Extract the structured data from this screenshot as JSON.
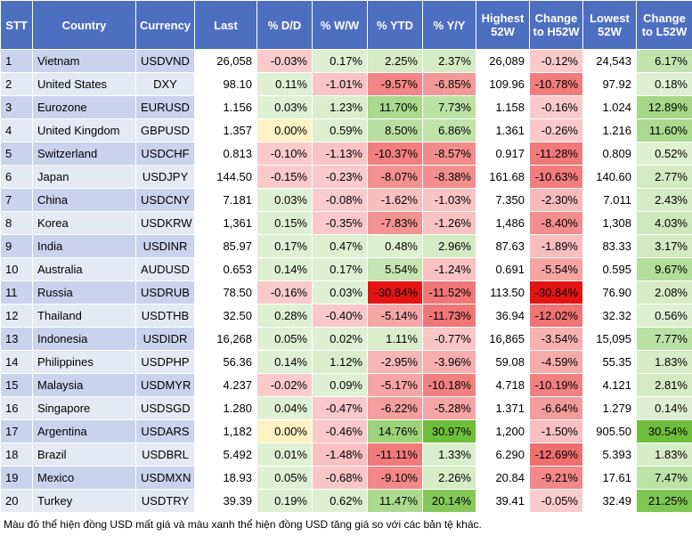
{
  "table": {
    "header": [
      "STT",
      "Country",
      "Currency",
      "Last",
      "% D/D",
      "% W/W",
      "% YTD",
      "% Y/Y",
      "Highest 52W",
      "Change to H52W",
      "Lowest 52W",
      "Change to L52W"
    ],
    "rows": [
      [
        "1",
        "Vietnam",
        "USDVND",
        "26,058",
        "-0.03%",
        "0.17%",
        "2.25%",
        "2.37%",
        "26,089",
        "-0.12%",
        "24,543",
        "6.17%"
      ],
      [
        "2",
        "United States",
        "DXY",
        "98.10",
        "0.11%",
        "-1.01%",
        "-9.57%",
        "-6.85%",
        "109.96",
        "-10.78%",
        "97.92",
        "0.18%"
      ],
      [
        "3",
        "Eurozone",
        "EURUSD",
        "1.156",
        "0.03%",
        "1.23%",
        "11.70%",
        "7.73%",
        "1.158",
        "-0.16%",
        "1.024",
        "12.89%"
      ],
      [
        "4",
        "United Kingdom",
        "GBPUSD",
        "1.357",
        "0.00%",
        "0.59%",
        "8.50%",
        "6.86%",
        "1.361",
        "-0.26%",
        "1.216",
        "11.60%"
      ],
      [
        "5",
        "Switzerland",
        "USDCHF",
        "0.813",
        "-0.10%",
        "-1.13%",
        "-10.37%",
        "-8.57%",
        "0.917",
        "-11.28%",
        "0.809",
        "0.52%"
      ],
      [
        "6",
        "Japan",
        "USDJPY",
        "144.50",
        "-0.15%",
        "-0.23%",
        "-8.07%",
        "-8.38%",
        "161.68",
        "-10.63%",
        "140.60",
        "2.77%"
      ],
      [
        "7",
        "China",
        "USDCNY",
        "7.181",
        "0.03%",
        "-0.08%",
        "-1.62%",
        "-1.03%",
        "7.350",
        "-2.30%",
        "7.011",
        "2.43%"
      ],
      [
        "8",
        "Korea",
        "USDKRW",
        "1,361",
        "0.15%",
        "-0.35%",
        "-7.83%",
        "-1.26%",
        "1,486",
        "-8.40%",
        "1,308",
        "4.03%"
      ],
      [
        "9",
        "India",
        "USDINR",
        "85.97",
        "0.17%",
        "0.47%",
        "0.48%",
        "2.96%",
        "87.63",
        "-1.89%",
        "83.33",
        "3.17%"
      ],
      [
        "10",
        "Australia",
        "AUDUSD",
        "0.653",
        "0.14%",
        "0.17%",
        "5.54%",
        "-1.24%",
        "0.691",
        "-5.54%",
        "0.595",
        "9.67%"
      ],
      [
        "11",
        "Russia",
        "USDRUB",
        "78.50",
        "-0.16%",
        "0.03%",
        "-30.84%",
        "-11.52%",
        "113.50",
        "-30.84%",
        "76.90",
        "2.08%"
      ],
      [
        "12",
        "Thailand",
        "USDTHB",
        "32.50",
        "0.28%",
        "-0.40%",
        "-5.14%",
        "-11.73%",
        "36.94",
        "-12.02%",
        "32.32",
        "0.56%"
      ],
      [
        "13",
        "Indonesia",
        "USDIDR",
        "16,268",
        "0.05%",
        "0.02%",
        "1.11%",
        "-0.77%",
        "16,865",
        "-3.54%",
        "15,095",
        "7.77%"
      ],
      [
        "14",
        "Philippines",
        "USDPHP",
        "56.36",
        "0.14%",
        "1.12%",
        "-2.95%",
        "-3.96%",
        "59.08",
        "-4.59%",
        "55.35",
        "1.83%"
      ],
      [
        "15",
        "Malaysia",
        "USDMYR",
        "4.237",
        "-0.02%",
        "0.09%",
        "-5.17%",
        "-10.18%",
        "4.718",
        "-10.19%",
        "4.121",
        "2.81%"
      ],
      [
        "16",
        "Singapore",
        "USDSGD",
        "1.280",
        "0.04%",
        "-0.47%",
        "-6.22%",
        "-5.28%",
        "1.371",
        "-6.64%",
        "1.279",
        "0.14%"
      ],
      [
        "17",
        "Argentina",
        "USDARS",
        "1,182",
        "0.00%",
        "-0.46%",
        "14.76%",
        "30.97%",
        "1,200",
        "-1.50%",
        "905.50",
        "30.54%"
      ],
      [
        "18",
        "Brazil",
        "USDBRL",
        "5.492",
        "0.01%",
        "-1.48%",
        "-11.11%",
        "1.33%",
        "6.290",
        "-12.69%",
        "5.393",
        "1.83%"
      ],
      [
        "19",
        "Mexico",
        "USDMXN",
        "18.93",
        "0.05%",
        "-0.68%",
        "-9.10%",
        "2.26%",
        "20.84",
        "-9.21%",
        "17.61",
        "7.47%"
      ],
      [
        "20",
        "Turkey",
        "USDTRY",
        "39.39",
        "0.19%",
        "0.62%",
        "11.47%",
        "20.14%",
        "39.41",
        "-0.05%",
        "32.49",
        "21.25%"
      ]
    ]
  },
  "footnote": "Màu đỏ thể hiện đồng USD mất giá và màu xanh thể hiện đồng USD tăng giá so với các bản tệ khác."
}
